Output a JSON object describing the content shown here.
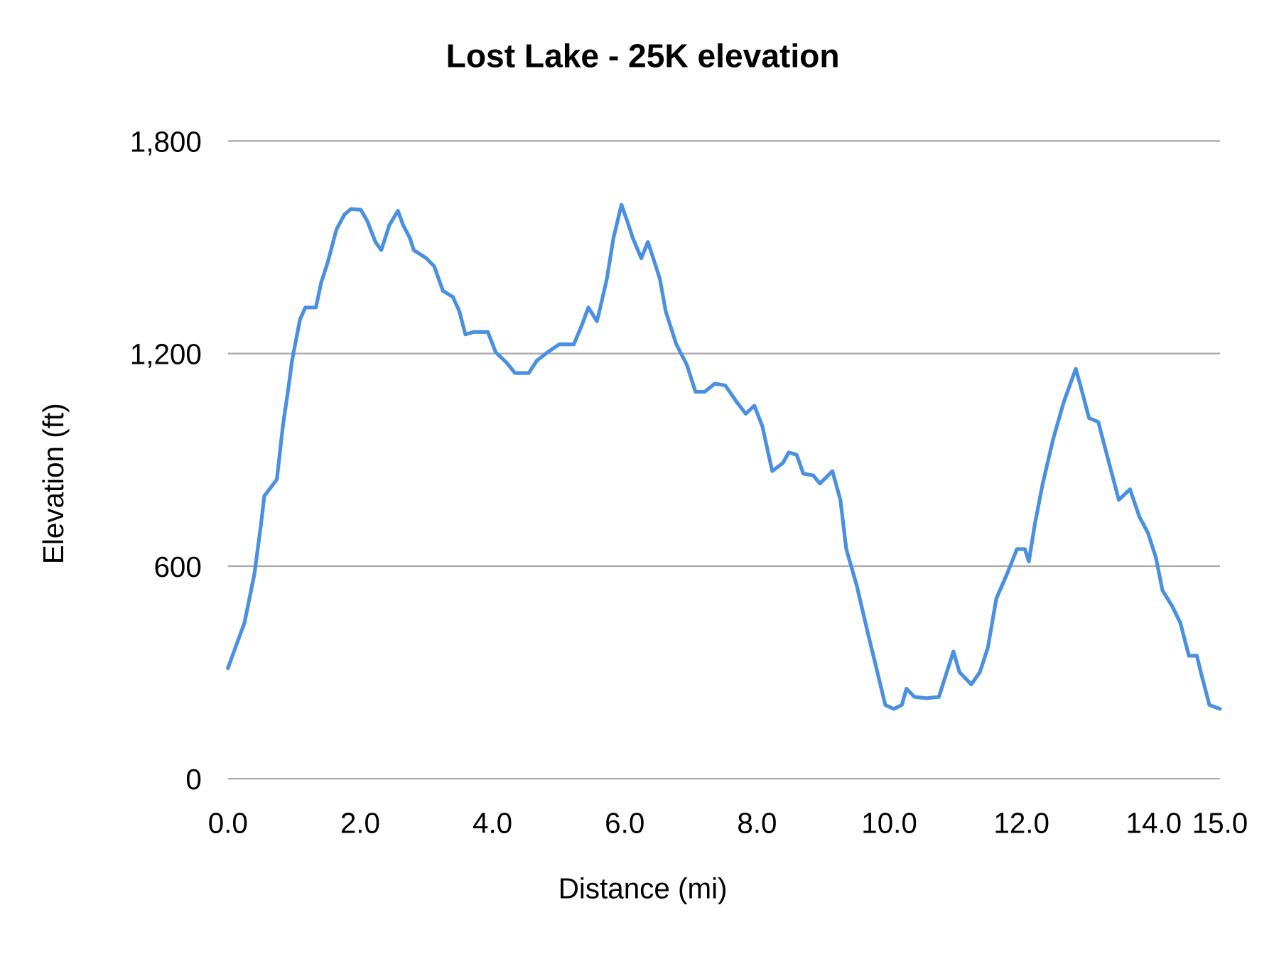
{
  "chart_data": {
    "type": "line",
    "title": "Lost Lake - 25K elevation",
    "xlabel": "Distance (mi)",
    "ylabel": "Elevation (ft)",
    "xlim": [
      0,
      15
    ],
    "ylim": [
      0,
      1800
    ],
    "x_ticks": [
      "0.0",
      "2.0",
      "4.0",
      "6.0",
      "8.0",
      "10.0",
      "12.0",
      "14.0",
      "15.0"
    ],
    "x_tick_values": [
      0,
      2,
      4,
      6,
      8,
      10,
      12,
      14,
      15
    ],
    "y_ticks": [
      "0",
      "600",
      "1,200",
      "1,800"
    ],
    "y_tick_values": [
      0,
      600,
      1200,
      1800
    ],
    "grid": "horizontal",
    "legend": "none",
    "line_color": "#4a90e2",
    "series": [
      {
        "x": [
          0.0,
          0.25,
          0.4,
          0.5,
          0.55,
          0.74,
          0.83,
          0.92,
          0.97,
          1.09,
          1.17,
          1.33,
          1.41,
          1.51,
          1.64,
          1.76,
          1.86,
          2.01,
          2.11,
          2.23,
          2.32,
          2.44,
          2.57,
          2.65,
          2.75,
          2.81,
          3.0,
          3.12,
          3.25,
          3.4,
          3.5,
          3.59,
          3.72,
          3.93,
          4.05,
          4.21,
          4.34,
          4.55,
          4.67,
          4.83,
          5.01,
          5.13,
          5.23,
          5.36,
          5.45,
          5.58,
          5.63,
          5.73,
          5.83,
          5.95,
          6.04,
          6.12,
          6.25,
          6.35,
          6.45,
          6.53,
          6.62,
          6.78,
          6.94,
          7.07,
          7.21,
          7.36,
          7.52,
          7.69,
          7.83,
          7.96,
          8.08,
          8.23,
          8.39,
          8.48,
          8.6,
          8.7,
          8.85,
          8.95,
          9.14,
          9.26,
          9.35,
          9.51,
          9.67,
          9.82,
          9.94,
          10.07,
          10.19,
          10.26,
          10.38,
          10.56,
          10.75,
          10.87,
          10.97,
          11.06,
          11.24,
          11.37,
          11.49,
          11.62,
          11.78,
          11.93,
          12.05,
          12.11,
          12.2,
          12.32,
          12.48,
          12.64,
          12.82,
          12.89,
          13.02,
          13.16,
          13.29,
          13.47,
          13.64,
          13.78,
          13.91,
          14.03,
          14.13,
          14.28,
          14.4,
          14.53,
          14.65,
          14.71,
          14.84,
          15.0
        ],
        "y": [
          312,
          440,
          578,
          717,
          798,
          845,
          995,
          1110,
          1180,
          1296,
          1330,
          1330,
          1400,
          1458,
          1550,
          1592,
          1608,
          1606,
          1573,
          1515,
          1492,
          1562,
          1603,
          1562,
          1527,
          1492,
          1469,
          1446,
          1377,
          1360,
          1319,
          1254,
          1261,
          1261,
          1203,
          1175,
          1145,
          1145,
          1180,
          1203,
          1226,
          1226,
          1226,
          1284,
          1330,
          1291,
          1330,
          1411,
          1527,
          1620,
          1573,
          1527,
          1469,
          1515,
          1458,
          1411,
          1319,
          1226,
          1168,
          1092,
          1092,
          1115,
          1110,
          1064,
          1030,
          1053,
          995,
          868,
          891,
          921,
          914,
          861,
          856,
          833,
          868,
          787,
          648,
          544,
          416,
          301,
          208,
          197,
          208,
          254,
          231,
          227,
          231,
          301,
          359,
          301,
          266,
          301,
          370,
          509,
          578,
          648,
          648,
          613,
          717,
          833,
          960,
          1064,
          1157,
          1110,
          1018,
          1007,
          914,
          787,
          817,
          740,
          694,
          625,
          532,
          486,
          440,
          347,
          347,
          301,
          208,
          197
        ]
      }
    ]
  }
}
